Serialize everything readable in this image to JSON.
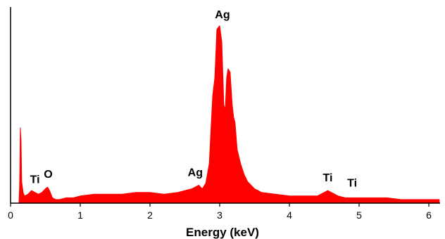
{
  "chart_data": {
    "type": "area",
    "title": "",
    "xlabel": "Energy  (keV)",
    "ylabel": "",
    "xlim": [
      0,
      6.2
    ],
    "ylim": [
      0,
      100
    ],
    "grid": false,
    "x_ticks": [
      "0",
      "1",
      "2",
      "3",
      "4",
      "5",
      "6"
    ],
    "series_color": "#ff0000",
    "spectrum": {
      "x": [
        0.12,
        0.13,
        0.14,
        0.15,
        0.16,
        0.18,
        0.2,
        0.25,
        0.3,
        0.35,
        0.4,
        0.45,
        0.5,
        0.53,
        0.56,
        0.6,
        0.65,
        0.7,
        0.8,
        0.9,
        1.0,
        1.2,
        1.4,
        1.6,
        1.8,
        2.0,
        2.2,
        2.4,
        2.5,
        2.6,
        2.65,
        2.7,
        2.75,
        2.8,
        2.85,
        2.88,
        2.9,
        2.93,
        2.96,
        2.98,
        3.0,
        3.03,
        3.06,
        3.08,
        3.1,
        3.12,
        3.15,
        3.18,
        3.2,
        3.22,
        3.25,
        3.3,
        3.35,
        3.4,
        3.5,
        3.6,
        3.8,
        4.0,
        4.2,
        4.4,
        4.5,
        4.55,
        4.6,
        4.7,
        4.8,
        4.9,
        5.0,
        5.2,
        5.4,
        5.6,
        5.8,
        6.0,
        6.15
      ],
      "y": [
        0,
        10,
        42,
        35,
        12,
        6,
        4,
        5,
        7,
        6,
        5,
        6,
        8,
        9,
        7,
        3,
        2,
        2,
        3,
        3,
        4,
        5,
        5,
        5,
        6,
        6,
        5,
        6,
        7,
        8,
        9,
        10,
        8,
        11,
        22,
        45,
        60,
        70,
        97,
        98,
        99,
        90,
        55,
        52,
        70,
        75,
        73,
        55,
        48,
        45,
        30,
        22,
        16,
        12,
        8,
        6,
        5,
        4,
        4,
        4,
        6,
        7,
        6,
        4,
        3,
        3,
        3,
        3,
        3,
        2,
        2,
        2,
        2
      ]
    },
    "peak_labels": [
      {
        "text": "Ti",
        "x": 0.35,
        "y": 8
      },
      {
        "text": "O",
        "x": 0.54,
        "y": 11
      },
      {
        "text": "Ag",
        "x": 2.65,
        "y": 12
      },
      {
        "text": "Ag",
        "x": 3.04,
        "y": 100
      },
      {
        "text": "Ti",
        "x": 4.55,
        "y": 9
      },
      {
        "text": "Ti",
        "x": 4.9,
        "y": 6
      }
    ]
  }
}
